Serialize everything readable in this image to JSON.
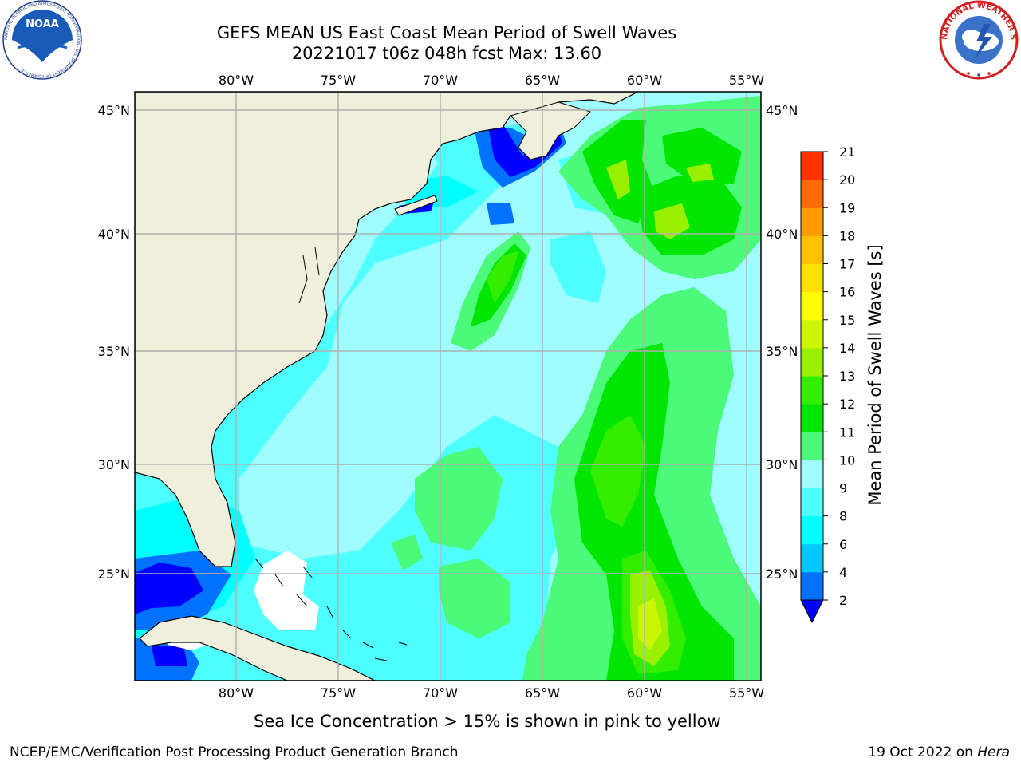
{
  "title": {
    "line1": "GEFS MEAN US East Coast Mean Period of Swell Waves",
    "line2": "20221017 t06z 048h fcst   Max: 13.60"
  },
  "map": {
    "lon_ticks": [
      "80°W",
      "75°W",
      "70°W",
      "65°W",
      "60°W",
      "55°W"
    ],
    "lat_ticks": [
      "45°N",
      "40°N",
      "35°N",
      "30°N",
      "25°N"
    ],
    "land_color": "#efefdc",
    "ocean_default_color": "#9ffcff"
  },
  "colorbar": {
    "label": "Mean Period of Swell Waves [s]",
    "ticks": [
      "2",
      "4",
      "6",
      "8",
      "9",
      "10",
      "11",
      "12",
      "13",
      "14",
      "15",
      "16",
      "17",
      "18",
      "19",
      "20",
      "21"
    ],
    "colors": [
      "#0072ff",
      "#00c8ff",
      "#00ffff",
      "#4dffff",
      "#9ffcff",
      "#4cfa7a",
      "#00e600",
      "#33ee00",
      "#99f000",
      "#ccf500",
      "#ffff00",
      "#ffe100",
      "#ffc000",
      "#ff9a00",
      "#ff6a00",
      "#ff3300",
      "#ff0000"
    ],
    "under_color": "#0000ff"
  },
  "note": "Sea Ice Concentration > 15% is shown in pink to yellow",
  "footer": {
    "credit": "NCEP/EMC/Verification Post Processing Product Generation Branch",
    "date_prefix": "19 Oct 2022 on ",
    "machine": "Hera"
  },
  "logos": {
    "left": "NOAA",
    "right_ring": "NATIONAL WEATHER SERVICE"
  }
}
